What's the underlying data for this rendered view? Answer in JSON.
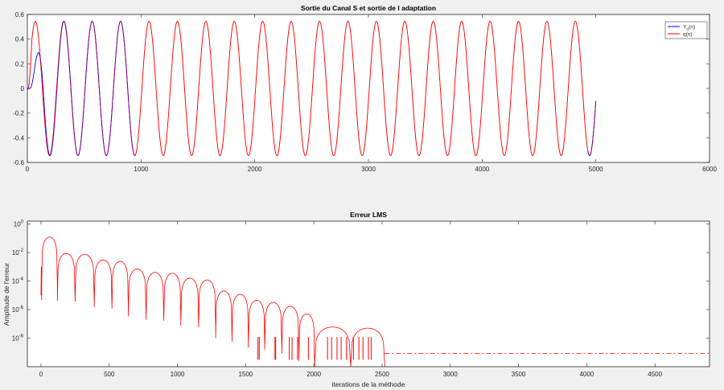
{
  "chart_data": [
    {
      "type": "line",
      "title": "Sortie du Canal S et sortie de l adaptation",
      "xlabel": "",
      "ylabel": "",
      "xlim": [
        0,
        6000
      ],
      "ylim": [
        -0.6,
        0.6
      ],
      "xticks": [
        "0",
        "1000",
        "2000",
        "3000",
        "4000",
        "5000",
        "6000"
      ],
      "yticks": [
        "-0.6",
        "-0.4",
        "-0.2",
        "0",
        "0.2",
        "0.4",
        "0.6"
      ],
      "grid": false,
      "legend_position": "top-right",
      "signal": {
        "amplitude": 0.545,
        "period": 250,
        "n_points": 5000
      },
      "series": [
        {
          "name": "Y",
          "name_subscript": "u",
          "name_suffix": "(n)",
          "color": "#0000ff",
          "description_points": [
            [
              0,
              0
            ],
            [
              90,
              0.43
            ],
            [
              200,
              -0.54
            ],
            [
              325,
              0.55
            ],
            [
              825,
              0.55
            ],
            [
              4995,
              -0.13
            ]
          ],
          "visible_until": 950
        },
        {
          "name": "q(n)",
          "color": "#ff0000",
          "description_points": [
            [
              0,
              0
            ],
            [
              70,
              0.545
            ],
            [
              200,
              -0.545
            ],
            [
              5000,
              -0.12
            ]
          ]
        }
      ]
    },
    {
      "type": "line",
      "title": "Erreur LMS",
      "xlabel": "iterations de la méthode",
      "ylabel": "Amplitude de l'erreur",
      "xlim": [
        -100,
        4900
      ],
      "ylim_log10": [
        -10,
        0.2
      ],
      "yscale": "log",
      "xticks": [
        "0",
        "500",
        "1000",
        "1500",
        "2000",
        "2500",
        "3000",
        "3500",
        "4000",
        "4500"
      ],
      "yticks_exponents": [
        0,
        -2,
        -4,
        -6,
        -8
      ],
      "grid": false,
      "series": [
        {
          "name": "",
          "color": "#ff0000",
          "peaks": [
            [
              60,
              0.12
            ],
            [
              180,
              0.0085
            ],
            [
              320,
              0.0075
            ],
            [
              460,
              0.003
            ],
            [
              580,
              0.0024
            ],
            [
              700,
              0.0007
            ],
            [
              840,
              0.0004
            ],
            [
              960,
              0.00035
            ],
            [
              1090,
              0.00016
            ],
            [
              1220,
              0.00012
            ],
            [
              1340,
              2e-05
            ],
            [
              1460,
              1.2e-05
            ],
            [
              1580,
              4.5e-06
            ],
            [
              1700,
              3.2e-06
            ],
            [
              1830,
              1.7e-06
            ],
            [
              1950,
              5e-07
            ],
            [
              2060,
              6e-08
            ],
            [
              2480,
              5e-08
            ]
          ],
          "floor_start": 2520,
          "floor_value": 8.5e-10
        }
      ]
    }
  ]
}
